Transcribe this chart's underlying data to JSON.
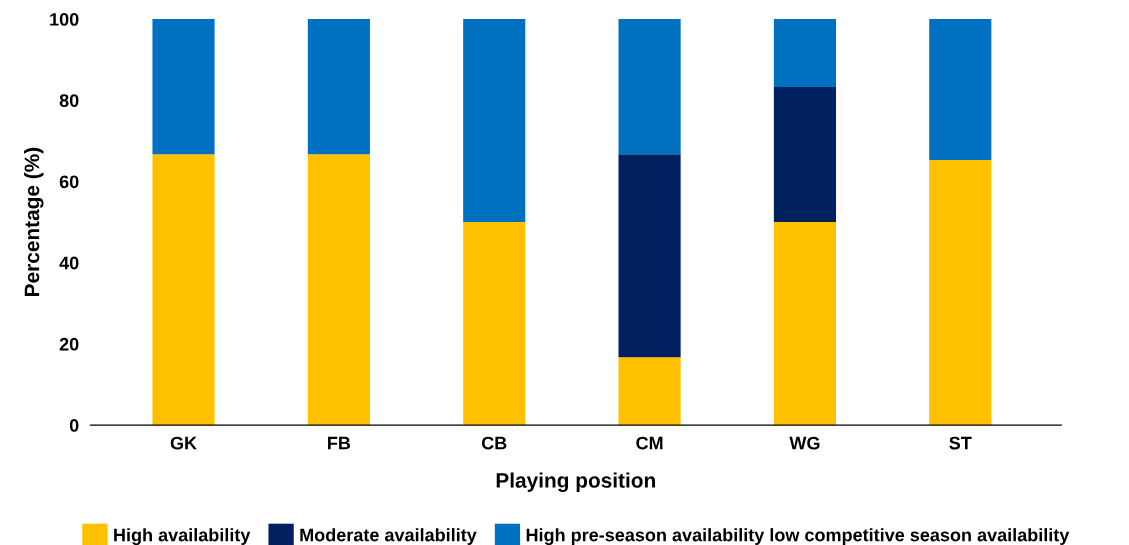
{
  "chart_data": {
    "type": "bar",
    "stacked": true,
    "xlabel": "Playing position",
    "ylabel": "Percentage (%)",
    "categories": [
      "GK",
      "FB",
      "CB",
      "CM",
      "WG",
      "ST"
    ],
    "series": [
      {
        "name": "High availability",
        "color": "#ffc000",
        "values": [
          66.7,
          66.7,
          50,
          16.7,
          50,
          65.3
        ]
      },
      {
        "name": "Moderate availability",
        "color": "#002060",
        "values": [
          0,
          0,
          0,
          50,
          33.3,
          0
        ]
      },
      {
        "name": "High pre-season availability low competitive season availability",
        "color": "#0070c0",
        "values": [
          33.3,
          33.3,
          50,
          33.3,
          16.7,
          34.7
        ]
      }
    ],
    "ylim": [
      0,
      100
    ],
    "yticks": [
      0,
      20,
      40,
      60,
      80,
      100
    ],
    "grid": false,
    "legend": "bottom"
  }
}
